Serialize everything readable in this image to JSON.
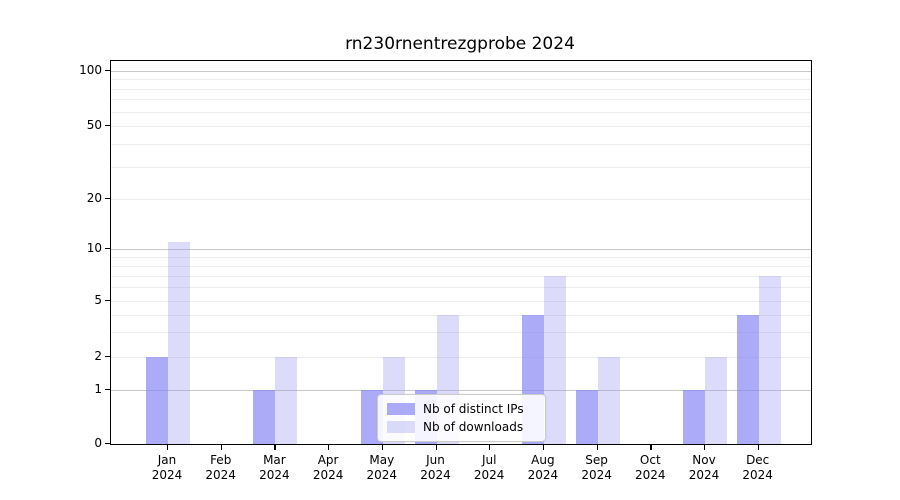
{
  "title": "rn230rnentrezgprobe 2024",
  "chart_data": {
    "type": "bar",
    "title": "rn230rnentrezgprobe 2024",
    "categories": [
      "Jan",
      "Feb",
      "Mar",
      "Apr",
      "May",
      "Jun",
      "Jul",
      "Aug",
      "Sep",
      "Oct",
      "Nov",
      "Dec"
    ],
    "category_year": "2024",
    "series": [
      {
        "name": "Nb of distinct IPs",
        "color": "rgba(130,130,245,0.67)",
        "values": [
          2,
          0,
          1,
          0,
          1,
          1,
          0,
          4,
          1,
          0,
          1,
          4
        ]
      },
      {
        "name": "Nb of downloads",
        "color": "rgba(150,150,240,0.33)",
        "values": [
          11,
          0,
          2,
          0,
          2,
          4,
          0,
          7,
          2,
          0,
          2,
          7
        ]
      }
    ],
    "xlabel": "",
    "ylabel": "",
    "y_axis": {
      "scale": "symlog",
      "tick_values": [
        0,
        1,
        2,
        5,
        10,
        20,
        50,
        100
      ],
      "major_grid_values": [
        1,
        10,
        100
      ],
      "minor_grid_values": [
        2,
        3,
        4,
        5,
        6,
        7,
        8,
        9,
        20,
        30,
        40,
        50,
        60,
        70,
        80,
        90
      ],
      "ylim": [
        0,
        140
      ]
    },
    "grid": true,
    "legend_position": "lower center",
    "colors": {
      "major_grid": "#c8c8c8",
      "minor_grid": "#ececec",
      "axis": "#000000",
      "background": "#ffffff"
    }
  }
}
